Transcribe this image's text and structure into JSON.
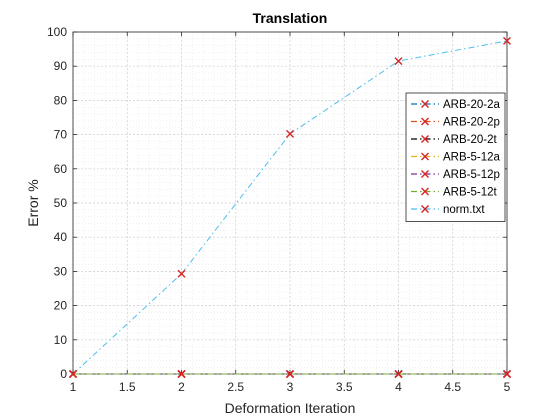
{
  "chart_data": {
    "type": "line",
    "title": "Translation",
    "xlabel": "Deformation Iteration",
    "ylabel": "Error %",
    "xlim": [
      1,
      5
    ],
    "ylim": [
      0,
      100
    ],
    "x_ticks": [
      "1",
      "1.5",
      "2",
      "2.5",
      "3",
      "3.5",
      "4",
      "4.5",
      "5"
    ],
    "y_ticks": [
      "0",
      "10",
      "20",
      "30",
      "40",
      "50",
      "60",
      "70",
      "80",
      "90",
      "100"
    ],
    "grid": true,
    "minor_grid": true,
    "legend_position": "top-right",
    "marker": "x",
    "marker_color": "#d62728",
    "x": [
      1,
      2,
      3,
      4,
      5
    ],
    "series": [
      {
        "name": "ARB-20-2a",
        "color": "#0072bd",
        "values": [
          0,
          0,
          0,
          0,
          0
        ]
      },
      {
        "name": "ARB-20-2p",
        "color": "#d95319",
        "values": [
          0,
          0,
          0,
          0,
          0
        ]
      },
      {
        "name": "ARB-20-2t",
        "color": "#000000",
        "values": [
          0,
          0,
          0,
          0,
          0
        ]
      },
      {
        "name": "ARB-5-12a",
        "color": "#edb120",
        "values": [
          0,
          0,
          0,
          0,
          0
        ]
      },
      {
        "name": "ARB-5-12p",
        "color": "#7e2f8e",
        "values": [
          0,
          0,
          0,
          0,
          0
        ]
      },
      {
        "name": "ARB-5-12t",
        "color": "#77ac30",
        "values": [
          0,
          0,
          0,
          0,
          0
        ]
      },
      {
        "name": "norm.txt",
        "color": "#4dbeee",
        "values": [
          0,
          29.3,
          70.2,
          91.5,
          97.4
        ]
      }
    ]
  }
}
